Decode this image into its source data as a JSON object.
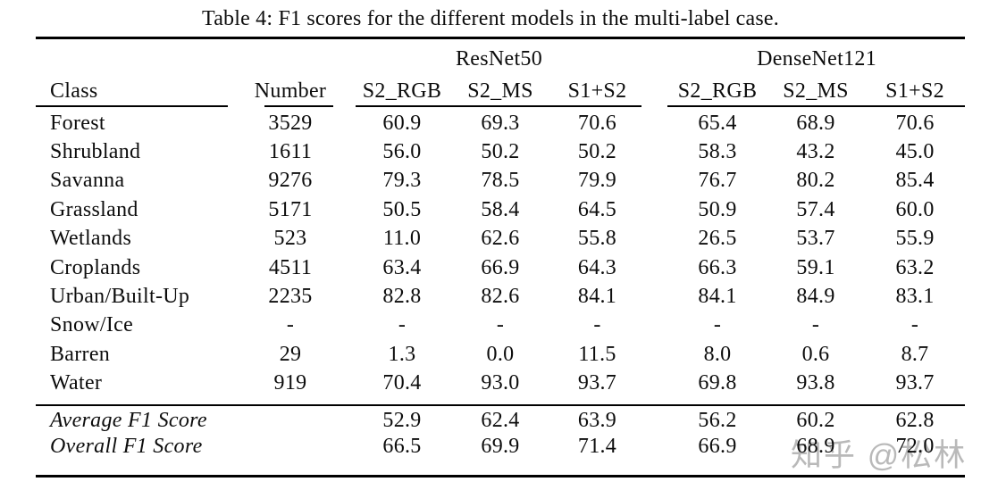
{
  "caption": "Table 4: F1 scores for the different models in the multi-label case.",
  "watermark": {
    "text": "知乎 @松林",
    "color": "#b9b9b9"
  },
  "table": {
    "group_headers": [
      "ResNet50",
      "DenseNet121"
    ],
    "columns": [
      "Class",
      "Number",
      "S2_RGB",
      "S2_MS",
      "S1+S2",
      "S2_RGB",
      "S2_MS",
      "S1+S2"
    ],
    "rows": [
      [
        "Forest",
        "3529",
        "60.9",
        "69.3",
        "70.6",
        "65.4",
        "68.9",
        "70.6"
      ],
      [
        "Shrubland",
        "1611",
        "56.0",
        "50.2",
        "50.2",
        "58.3",
        "43.2",
        "45.0"
      ],
      [
        "Savanna",
        "9276",
        "79.3",
        "78.5",
        "79.9",
        "76.7",
        "80.2",
        "85.4"
      ],
      [
        "Grassland",
        "5171",
        "50.5",
        "58.4",
        "64.5",
        "50.9",
        "57.4",
        "60.0"
      ],
      [
        "Wetlands",
        "523",
        "11.0",
        "62.6",
        "55.8",
        "26.5",
        "53.7",
        "55.9"
      ],
      [
        "Croplands",
        "4511",
        "63.4",
        "66.9",
        "64.3",
        "66.3",
        "59.1",
        "63.2"
      ],
      [
        "Urban/Built-Up",
        "2235",
        "82.8",
        "82.6",
        "84.1",
        "84.1",
        "84.9",
        "83.1"
      ],
      [
        "Snow/Ice",
        "-",
        "-",
        "-",
        "-",
        "-",
        "-",
        "-"
      ],
      [
        "Barren",
        "29",
        "1.3",
        "0.0",
        "11.5",
        "8.0",
        "0.6",
        "8.7"
      ],
      [
        "Water",
        "919",
        "70.4",
        "93.0",
        "93.7",
        "69.8",
        "93.8",
        "93.7"
      ]
    ],
    "summary_rows": [
      [
        "Average F1 Score",
        "",
        "52.9",
        "62.4",
        "63.9",
        "56.2",
        "60.2",
        "62.8"
      ],
      [
        "Overall F1 Score",
        "",
        "66.5",
        "69.9",
        "71.4",
        "66.9",
        "68.9",
        "72.0"
      ]
    ]
  }
}
